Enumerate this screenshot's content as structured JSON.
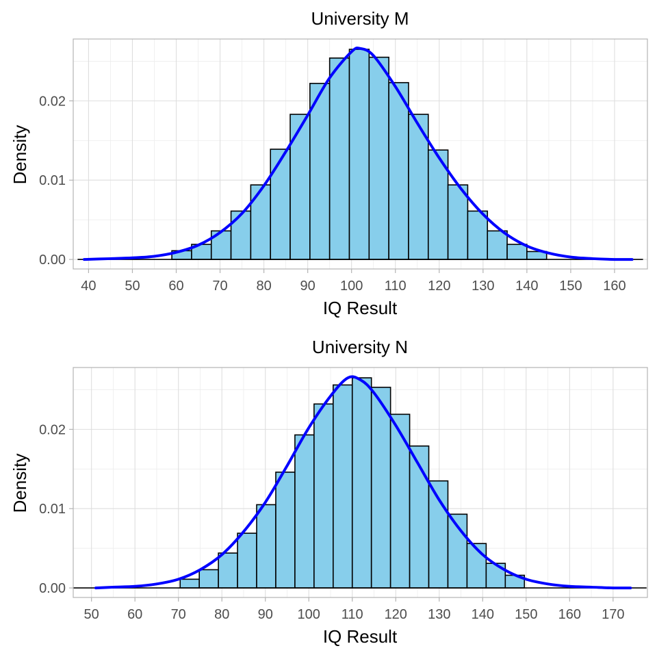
{
  "chart_data": [
    {
      "type": "bar",
      "subtype": "histogram-with-density",
      "title": "University M",
      "xlabel": "IQ Result",
      "ylabel": "Density",
      "xlim": [
        36.5,
        167.5
      ],
      "ylim": [
        -0.0012,
        0.0278
      ],
      "x_ticks": [
        40,
        50,
        60,
        70,
        80,
        90,
        100,
        110,
        120,
        130,
        140,
        150,
        160
      ],
      "x_tick_labels": [
        "40",
        "50",
        "60",
        "70",
        "80",
        "90",
        "100",
        "110",
        "120",
        "130",
        "140",
        "150",
        "160"
      ],
      "y_ticks": [
        0,
        0.01,
        0.02
      ],
      "y_tick_labels": [
        "0.00",
        "0.01",
        "0.02"
      ],
      "grid": true,
      "bins": {
        "left_edges": [
          59,
          63.5,
          68,
          72.5,
          77,
          81.5,
          86,
          90.5,
          95,
          99.5,
          104,
          108.5,
          113,
          117.5,
          122,
          126.5,
          131,
          135.5,
          140
        ],
        "width": 4.5,
        "heights": [
          0.0011,
          0.0019,
          0.0036,
          0.0061,
          0.0094,
          0.0139,
          0.0183,
          0.0222,
          0.0254,
          0.0265,
          0.0255,
          0.0223,
          0.0183,
          0.0138,
          0.0094,
          0.0061,
          0.0036,
          0.0019,
          0.001
        ]
      },
      "baseline_range": [
        37.5,
        166.5
      ],
      "density": {
        "x": [
          39,
          45,
          50,
          55,
          60,
          65,
          70,
          75,
          80,
          85,
          90,
          95,
          100,
          102,
          105,
          110,
          115,
          120,
          125,
          130,
          135,
          140,
          145,
          150,
          155,
          160,
          164
        ],
        "y": [
          0.0,
          0.0001,
          0.0002,
          0.0004,
          0.0009,
          0.0018,
          0.0034,
          0.0058,
          0.0093,
          0.0136,
          0.0182,
          0.0229,
          0.0262,
          0.0266,
          0.0257,
          0.0218,
          0.0172,
          0.0128,
          0.0089,
          0.0057,
          0.0033,
          0.0017,
          0.0008,
          0.0003,
          0.0001,
          0.0,
          0.0
        ]
      },
      "colors": {
        "bar_fill": "#87CEEB",
        "bar_outline": "#000000",
        "density": "#0000FF"
      }
    },
    {
      "type": "bar",
      "subtype": "histogram-with-density",
      "title": "University N",
      "xlabel": "IQ Result",
      "ylabel": "Density",
      "xlim": [
        45.8,
        177.9
      ],
      "ylim": [
        -0.0012,
        0.0278
      ],
      "x_ticks": [
        50,
        60,
        70,
        80,
        90,
        100,
        110,
        120,
        130,
        140,
        150,
        160,
        170
      ],
      "x_tick_labels": [
        "50",
        "60",
        "70",
        "80",
        "90",
        "100",
        "110",
        "120",
        "130",
        "140",
        "150",
        "160",
        "170"
      ],
      "y_ticks": [
        0,
        0.01,
        0.02
      ],
      "y_tick_labels": [
        "0.00",
        "0.01",
        "0.02"
      ],
      "grid": true,
      "bins": {
        "left_edges": [
          70.4,
          74.8,
          79.2,
          83.6,
          88,
          92.4,
          96.8,
          101.2,
          105.6,
          110,
          114.4,
          118.8,
          123.2,
          127.6,
          132,
          136.4,
          140.8,
          145.2
        ],
        "width": 4.4,
        "heights": [
          0.0011,
          0.0023,
          0.0044,
          0.0069,
          0.0105,
          0.0146,
          0.0193,
          0.0232,
          0.0256,
          0.0265,
          0.0253,
          0.0219,
          0.0179,
          0.0135,
          0.0093,
          0.0056,
          0.0031,
          0.0016
        ]
      },
      "baseline_range": [
        45.8,
        177.7
      ],
      "density": {
        "x": [
          51,
          55,
          60,
          65,
          70,
          75,
          80,
          85,
          90,
          95,
          100,
          105,
          109,
          112,
          115,
          120,
          125,
          130,
          135,
          140,
          145,
          150,
          155,
          160,
          165,
          170,
          174
        ],
        "y": [
          0.0,
          0.0001,
          0.0002,
          0.0005,
          0.0011,
          0.0023,
          0.0042,
          0.0071,
          0.0108,
          0.0154,
          0.0202,
          0.0242,
          0.0265,
          0.0262,
          0.0246,
          0.0205,
          0.0158,
          0.0111,
          0.0072,
          0.0042,
          0.0023,
          0.0011,
          0.0005,
          0.0002,
          0.0001,
          0.0,
          0.0
        ]
      },
      "colors": {
        "bar_fill": "#87CEEB",
        "bar_outline": "#000000",
        "density": "#0000FF"
      }
    }
  ]
}
